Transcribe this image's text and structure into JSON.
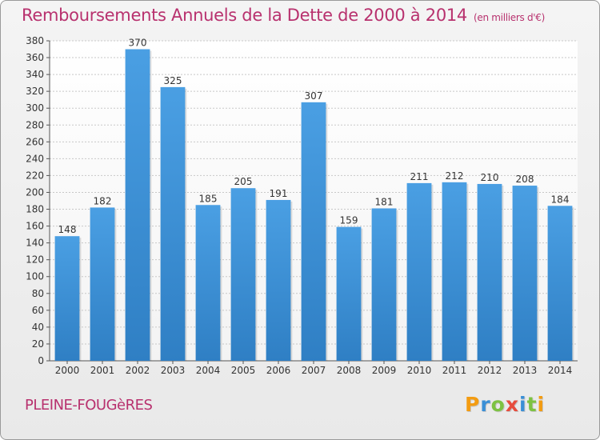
{
  "title": "Remboursements Annuels de la Dette de 2000 à 2014",
  "subtitle": "(en milliers d'€)",
  "commune": "PLEINE-FOUGèRES",
  "logo": {
    "letters": [
      "P",
      "r",
      "o",
      "x",
      "i",
      "t",
      "i"
    ],
    "colors": [
      "#f39c12",
      "#3a8fd6",
      "#7dc242",
      "#e74c3c",
      "#3a8fd6",
      "#7dc242",
      "#f39c12"
    ]
  },
  "colors": {
    "bar": "#4a9fe3",
    "bar_dark": "#2f7fc4",
    "title": "#b8316e"
  },
  "chart_data": {
    "type": "bar",
    "title": "Remboursements Annuels de la Dette de 2000 à 2014",
    "xlabel": "",
    "ylabel": "",
    "categories": [
      "2000",
      "2001",
      "2002",
      "2003",
      "2004",
      "2005",
      "2006",
      "2007",
      "2008",
      "2009",
      "2010",
      "2011",
      "2012",
      "2013",
      "2014"
    ],
    "values": [
      148,
      182,
      370,
      325,
      185,
      205,
      191,
      307,
      159,
      181,
      211,
      212,
      210,
      208,
      184
    ],
    "ylim": [
      0,
      380
    ],
    "yticks": [
      0,
      20,
      40,
      60,
      80,
      100,
      120,
      140,
      160,
      180,
      200,
      220,
      240,
      260,
      280,
      300,
      320,
      340,
      360,
      380
    ],
    "grid": true
  }
}
